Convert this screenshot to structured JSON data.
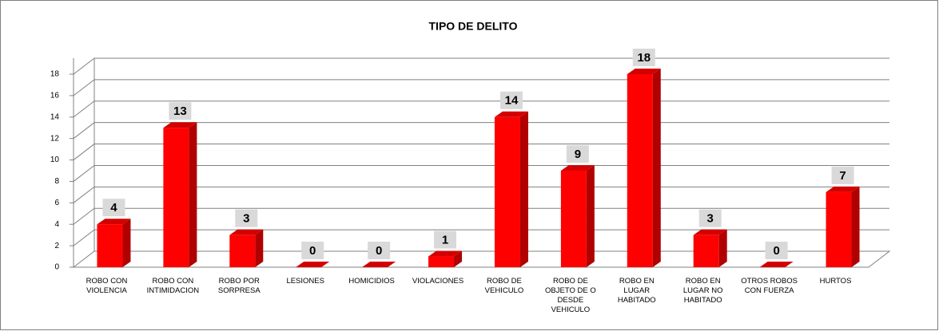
{
  "chart_data": {
    "type": "bar",
    "title": "TIPO DE DELITO",
    "categories": [
      "ROBO CON VIOLENCIA",
      "ROBO CON INTIMIDACION",
      "ROBO POR SORPRESA",
      "LESIONES",
      "HOMICIDIOS",
      "VIOLACIONES",
      "ROBO DE VEHICULO",
      "ROBO DE OBJETO DE O DESDE VEHICULO",
      "ROBO EN LUGAR HABITADO",
      "ROBO EN LUGAR NO HABITADO",
      "OTROS ROBOS CON FUERZA",
      "HURTOS"
    ],
    "values": [
      4,
      13,
      3,
      0,
      0,
      1,
      14,
      9,
      18,
      3,
      0,
      7
    ],
    "color": "#ff0000",
    "ylim": [
      0,
      18
    ],
    "yticks": [
      0,
      2,
      4,
      6,
      8,
      10,
      12,
      14,
      16,
      18
    ],
    "grid": true
  }
}
